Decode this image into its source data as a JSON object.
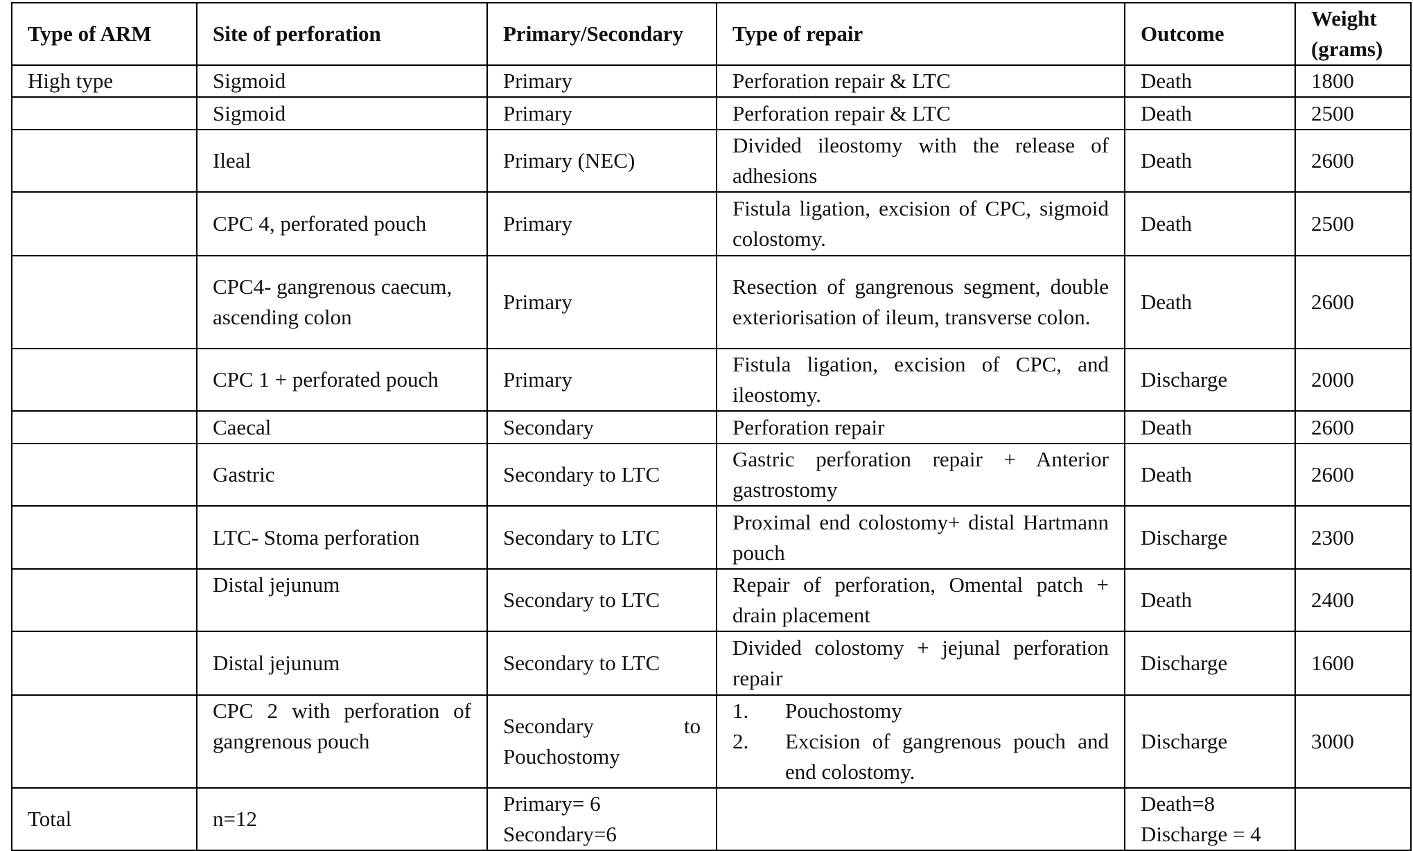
{
  "header": [
    "Type of ARM",
    "Site of perforation",
    "Primary/Secondary",
    "Type of repair",
    "Outcome",
    "Weight (grams)"
  ],
  "rows": [
    {
      "type": "High type",
      "site": "Sigmoid",
      "class": "Primary",
      "repair": "Perforation repair & LTC",
      "outcome": "Death",
      "weight": 1800
    },
    {
      "site": "Sigmoid",
      "class": "Primary",
      "repair": "Perforation repair & LTC",
      "outcome": "Death",
      "weight": 2500
    },
    {
      "site": "Ileal",
      "class": "Primary (NEC)",
      "repair": "Divided ileostomy with the release of adhesions",
      "outcome": "Death",
      "weight": 2600
    },
    {
      "site": "CPC 4, perforated pouch",
      "class": "Primary",
      "repair": "Fistula ligation, excision of CPC, sigmoid colostomy.",
      "outcome": "Death",
      "weight": 2500
    },
    {
      "site": "CPC4- gangrenous caecum, ascending colon",
      "class": "Primary",
      "repair": "Resection of gangrenous segment, double exteriorisation of ileum, transverse colon.",
      "outcome": "Death",
      "weight": 2600
    },
    {
      "site": "CPC 1 + perforated pouch",
      "class": "Primary",
      "repair": "Fistula ligation, excision of CPC, and ileostomy.",
      "outcome": "Discharge",
      "weight": 2000
    },
    {
      "site": "Caecal",
      "class": "Secondary",
      "repair": "Perforation repair",
      "outcome": "Death",
      "weight": 2600
    },
    {
      "site": "Gastric",
      "class": "Secondary to LTC",
      "repair": "Gastric perforation repair + Anterior gastrostomy",
      "outcome": "Death",
      "weight": 2600
    },
    {
      "site": "LTC- Stoma perforation",
      "class": "Secondary to LTC",
      "repair": "Proximal end colostomy+ distal Hartmann pouch",
      "outcome": "Discharge",
      "weight": 2300
    },
    {
      "site": "Distal jejunum",
      "class": "Secondary to LTC",
      "repair": "Repair of perforation, Omental patch + drain placement",
      "outcome": "Death",
      "weight": 2400
    },
    {
      "site": "Distal jejunum",
      "class": "Secondary to LTC",
      "repair": "Divided colostomy + jejunal perforation repair",
      "outcome": "Discharge",
      "weight": 1600
    },
    {
      "site": "CPC 2 with perforation of gangrenous pouch",
      "class": "Secondary to Pouchostomy",
      "repair": [
        {
          "number": "1.",
          "text": "Pouchostomy"
        },
        {
          "number": "2.",
          "text": "Excision of gangrenous pouch and end colostomy."
        }
      ],
      "outcome": "Discharge",
      "weight": 3000
    }
  ],
  "total": {
    "type": "Total",
    "site": "n=12",
    "class": [
      "Primary= 6",
      "Secondary=6"
    ],
    "outcome": [
      "Death=8",
      "Discharge = 4"
    ]
  }
}
